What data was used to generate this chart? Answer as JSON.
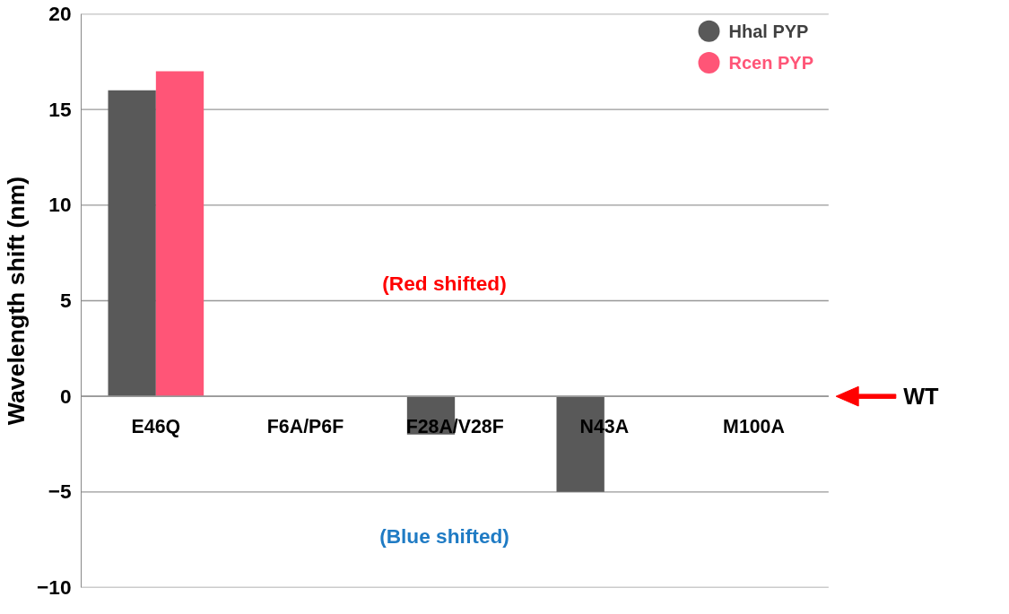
{
  "chart_data": {
    "type": "bar",
    "categories": [
      "E46Q",
      "F6A/P6F",
      "F28A/V28F",
      "N43A",
      "M100A"
    ],
    "series": [
      {
        "name": "Hhal PYP",
        "color": "#595959",
        "values": [
          16,
          null,
          -2,
          -5,
          null
        ]
      },
      {
        "name": "Rcen PYP",
        "color": "#ff5577",
        "values": [
          17,
          null,
          null,
          null,
          null
        ]
      }
    ],
    "ylabel": "Wavelength shift (nm)",
    "ylim": [
      -10,
      20
    ],
    "yticks": [
      -10,
      -5,
      0,
      5,
      10,
      15,
      20
    ],
    "grid": "y",
    "legend": "top right",
    "ref_lines": [
      {
        "axis": "y",
        "value": 0,
        "label": "WT",
        "color": "#ff0000"
      }
    ],
    "annotations": [
      "(Red shifted)",
      "(Blue shifted)"
    ]
  }
}
